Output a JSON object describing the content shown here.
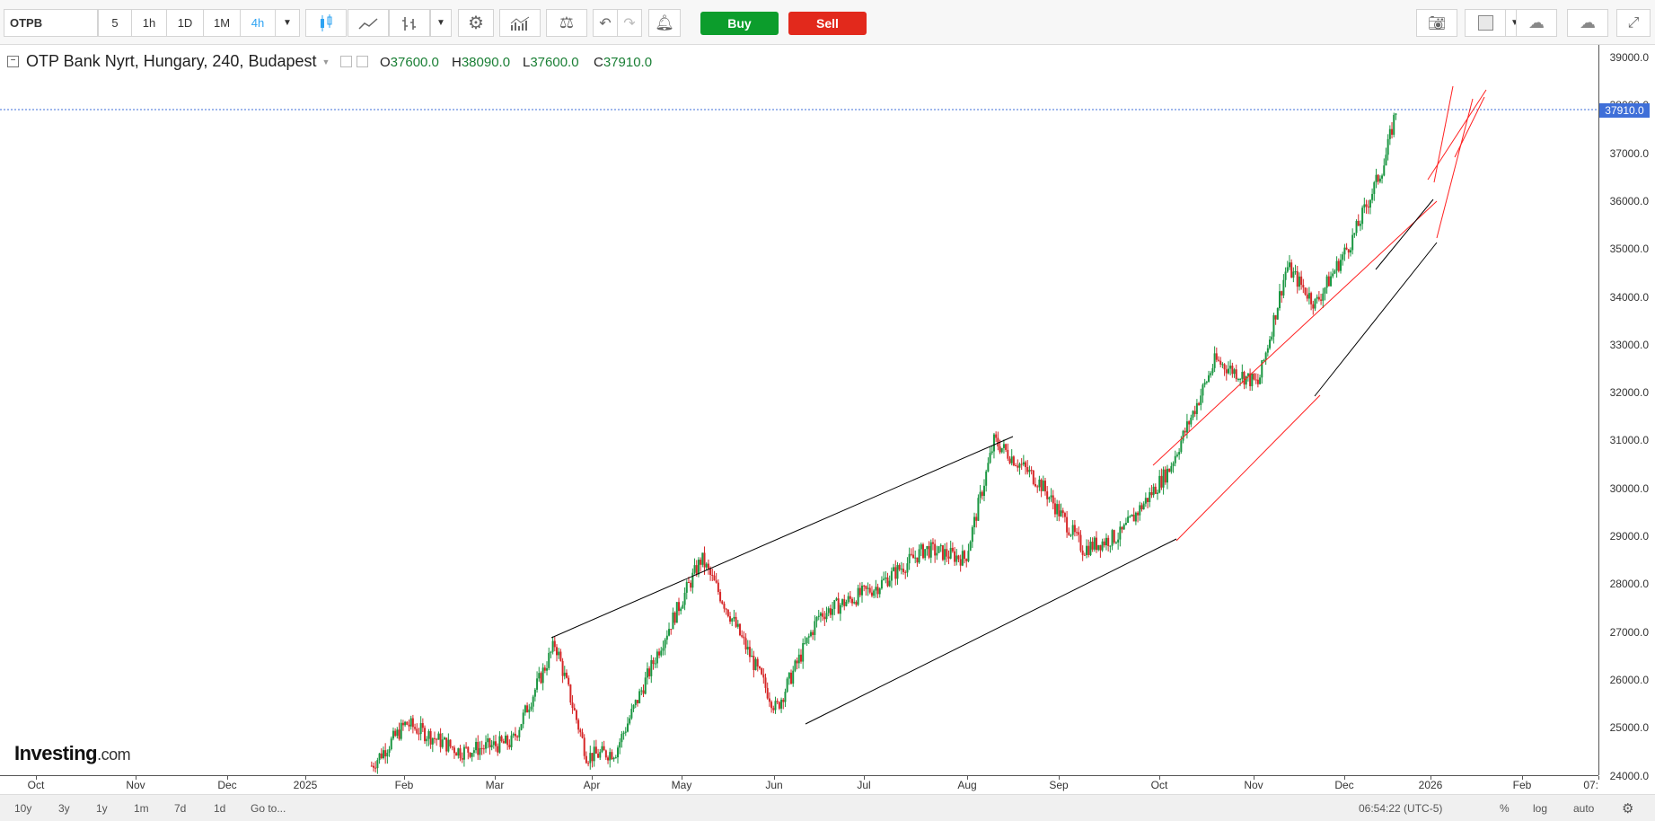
{
  "toolbar": {
    "symbol": "OTPB",
    "intervals": [
      "5",
      "1h",
      "1D",
      "1M",
      "4h"
    ],
    "active_interval": "4h",
    "buy_label": "Buy",
    "sell_label": "Sell"
  },
  "legend": {
    "title": "OTP Bank Nyrt, Hungary, 240, Budapest",
    "open_label": "O",
    "open": "37600.0",
    "high_label": "H",
    "high": "38090.0",
    "low_label": "L",
    "low": "37600.0",
    "close_label": "C",
    "close": "37910.0"
  },
  "price_axis": {
    "ticks": [
      "39000.0",
      "38000.0",
      "37000.0",
      "36000.0",
      "35000.0",
      "34000.0",
      "33000.0",
      "32000.0",
      "31000.0",
      "30000.0",
      "29000.0",
      "28000.0",
      "27000.0",
      "26000.0",
      "25000.0",
      "24000.0"
    ],
    "current_price": "37910.0"
  },
  "time_axis": {
    "ticks": [
      "Oct",
      "Nov",
      "Dec",
      "2025",
      "Feb",
      "Mar",
      "Apr",
      "May",
      "Jun",
      "Jul",
      "Aug",
      "Sep",
      "Oct",
      "Nov",
      "Dec",
      "2026",
      "Feb",
      "07:"
    ]
  },
  "bottom": {
    "ranges": [
      "10y",
      "3y",
      "1y",
      "1m",
      "7d",
      "1d"
    ],
    "goto": "Go to...",
    "time": "06:54:22 (UTC-5)",
    "percent": "%",
    "log": "log",
    "auto": "auto"
  },
  "logo": {
    "brand": "Investing",
    "suffix": ".com"
  },
  "chart_data": {
    "type": "candlestick",
    "title": "OTP Bank Nyrt, Hungary, 240, Budapest",
    "ylim": [
      23800,
      39300
    ],
    "grid": false,
    "colors": {
      "up": "#1a9641",
      "down": "#d62728",
      "trend_black": "#000000",
      "trend_red": "#ff2020",
      "price_line": "#3f6fd8"
    },
    "path_dates": [
      "2025-01-20",
      "2025-02-01",
      "2025-02-20",
      "2025-03-10",
      "2025-03-25",
      "2025-04-05",
      "2025-04-15",
      "2025-05-01",
      "2025-05-15",
      "2025-05-25",
      "2025-06-10",
      "2025-06-25",
      "2025-07-15",
      "2025-08-01",
      "2025-08-15",
      "2025-08-25",
      "2025-09-10",
      "2025-09-25",
      "2025-10-08",
      "2025-10-25",
      "2025-11-10",
      "2025-11-25",
      "2025-12-05",
      "2025-12-15",
      "2025-12-28",
      "2026-01-08",
      "2026-01-12"
    ],
    "path_close": [
      24000,
      24900,
      24300,
      24500,
      26600,
      24200,
      24300,
      26600,
      28400,
      27200,
      25200,
      27200,
      27800,
      28600,
      28400,
      30900,
      30000,
      28600,
      28900,
      30300,
      32600,
      32100,
      34600,
      33800,
      35200,
      36800,
      37910
    ]
  }
}
